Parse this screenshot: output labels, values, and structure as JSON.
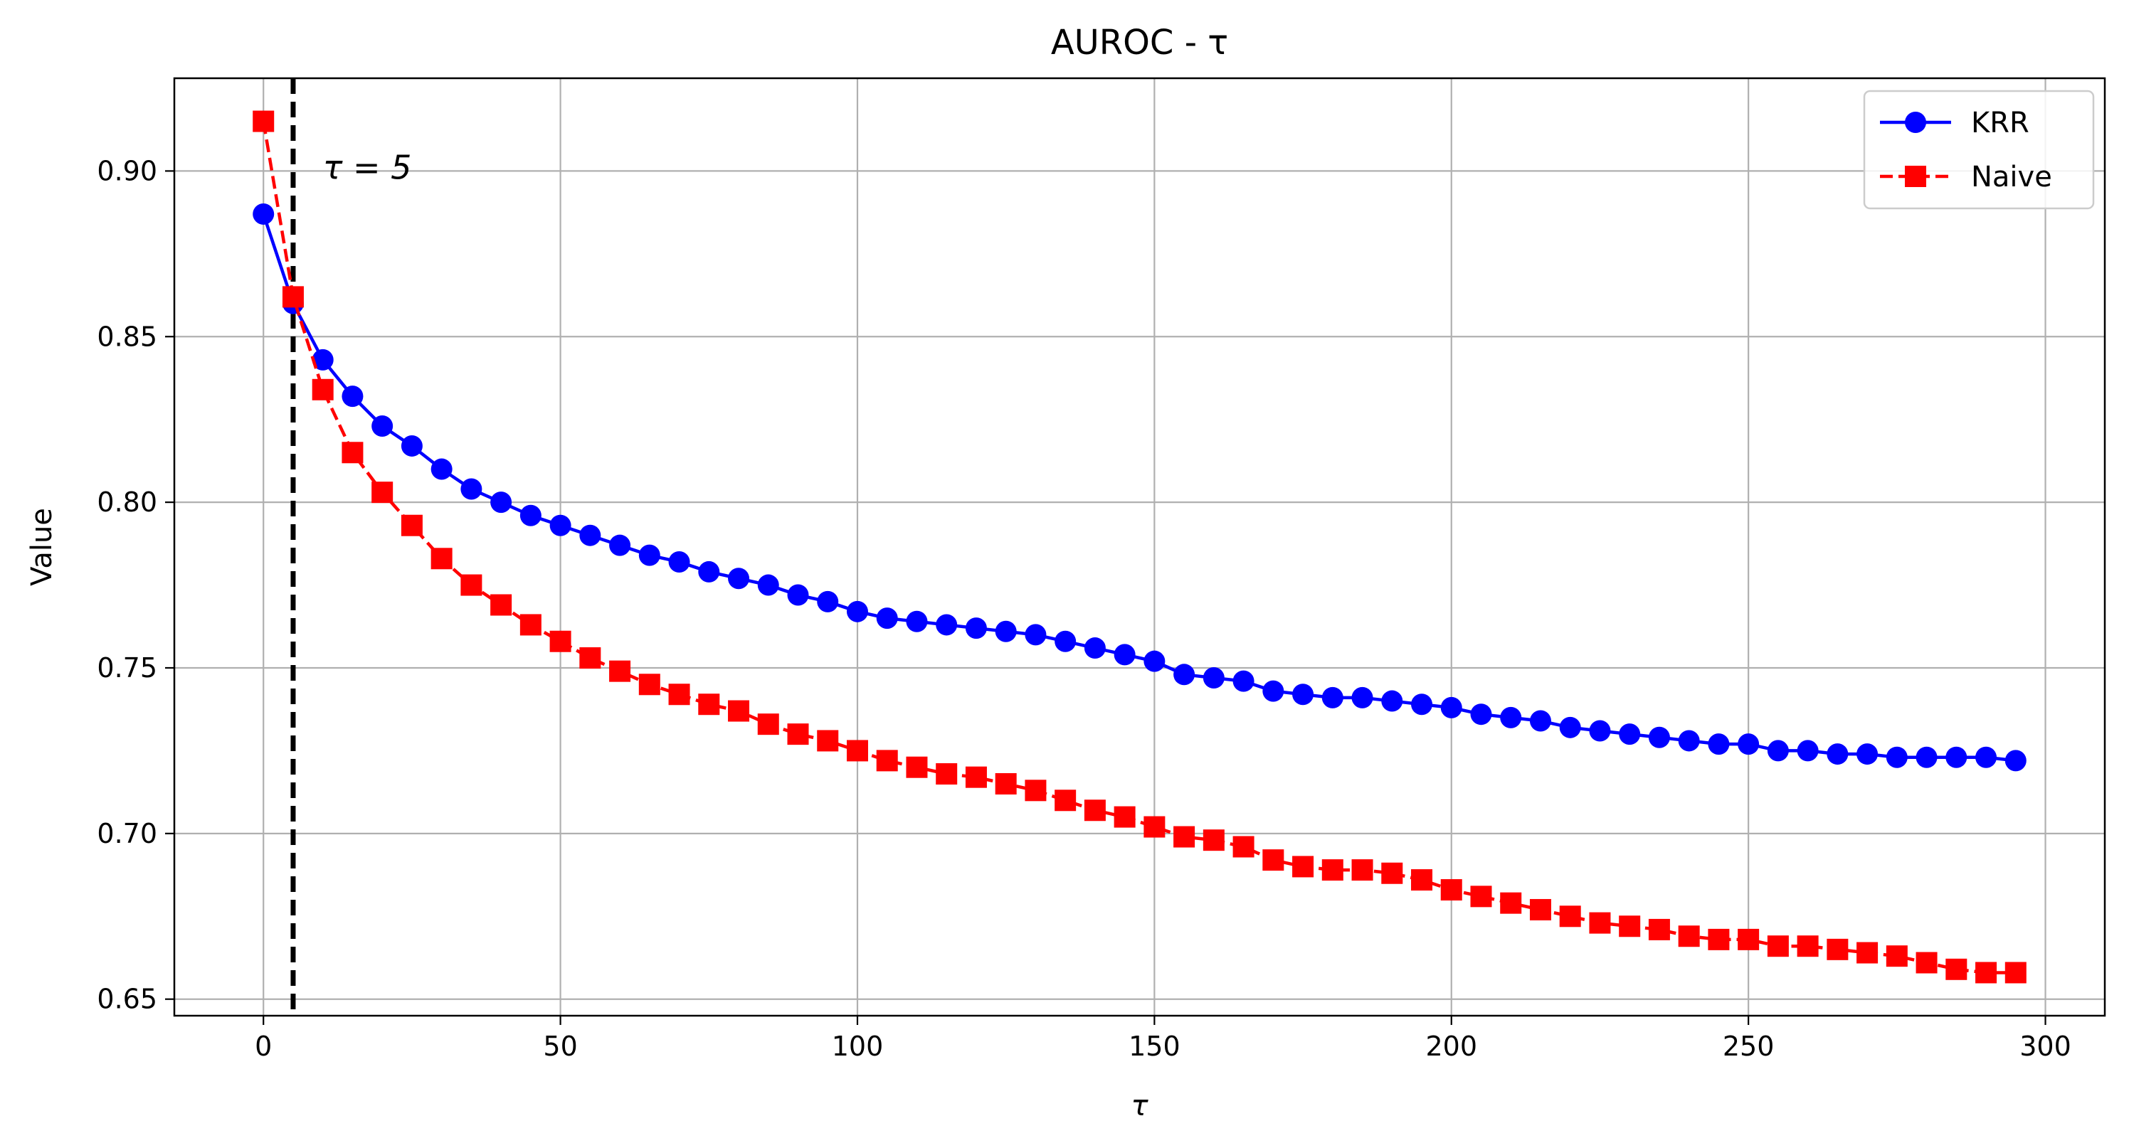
{
  "chart_data": {
    "type": "line",
    "title": "AUROC - τ",
    "xlabel": "τ",
    "ylabel": "Value",
    "xlim": [
      -15,
      310
    ],
    "ylim": [
      0.645,
      0.928
    ],
    "xticks": [
      0,
      50,
      100,
      150,
      200,
      250,
      300
    ],
    "yticks": [
      0.65,
      0.7,
      0.75,
      0.8,
      0.85,
      0.9
    ],
    "xtick_labels": [
      "0",
      "50",
      "100",
      "150",
      "200",
      "250",
      "300"
    ],
    "ytick_labels": [
      "0.65",
      "0.70",
      "0.75",
      "0.80",
      "0.85",
      "0.90"
    ],
    "grid": true,
    "legend_position": "top-right",
    "x": [
      0,
      5,
      10,
      15,
      20,
      25,
      30,
      35,
      40,
      45,
      50,
      55,
      60,
      65,
      70,
      75,
      80,
      85,
      90,
      95,
      100,
      105,
      110,
      115,
      120,
      125,
      130,
      135,
      140,
      145,
      150,
      155,
      160,
      165,
      170,
      175,
      180,
      185,
      190,
      195,
      200,
      205,
      210,
      215,
      220,
      225,
      230,
      235,
      240,
      245,
      250,
      255,
      260,
      265,
      270,
      275,
      280,
      285,
      290,
      295
    ],
    "series": [
      {
        "name": "KRR",
        "color": "#0000ff",
        "marker": "circle",
        "linestyle": "solid",
        "values": [
          0.887,
          0.86,
          0.843,
          0.832,
          0.823,
          0.817,
          0.81,
          0.804,
          0.8,
          0.796,
          0.793,
          0.79,
          0.787,
          0.784,
          0.782,
          0.779,
          0.777,
          0.775,
          0.772,
          0.77,
          0.767,
          0.765,
          0.764,
          0.763,
          0.762,
          0.761,
          0.76,
          0.758,
          0.756,
          0.754,
          0.752,
          0.748,
          0.747,
          0.746,
          0.743,
          0.742,
          0.741,
          0.741,
          0.74,
          0.739,
          0.738,
          0.736,
          0.735,
          0.734,
          0.732,
          0.731,
          0.73,
          0.729,
          0.728,
          0.727,
          0.727,
          0.725,
          0.725,
          0.724,
          0.724,
          0.723,
          0.723,
          0.723,
          0.723,
          0.722
        ]
      },
      {
        "name": "Naive",
        "color": "#ff0000",
        "marker": "square",
        "linestyle": "dashed",
        "values": [
          0.915,
          0.862,
          0.834,
          0.815,
          0.803,
          0.793,
          0.783,
          0.775,
          0.769,
          0.763,
          0.758,
          0.753,
          0.749,
          0.745,
          0.742,
          0.739,
          0.737,
          0.733,
          0.73,
          0.728,
          0.725,
          0.722,
          0.72,
          0.718,
          0.717,
          0.715,
          0.713,
          0.71,
          0.707,
          0.705,
          0.702,
          0.699,
          0.698,
          0.696,
          0.692,
          0.69,
          0.689,
          0.689,
          0.688,
          0.686,
          0.683,
          0.681,
          0.679,
          0.677,
          0.675,
          0.673,
          0.672,
          0.671,
          0.669,
          0.668,
          0.668,
          0.666,
          0.666,
          0.665,
          0.664,
          0.663,
          0.661,
          0.659,
          0.658,
          0.658
        ]
      }
    ],
    "vline": {
      "x": 5,
      "color": "#000000",
      "linestyle": "dashed"
    },
    "annotation": {
      "text": "τ = 5",
      "x": 10,
      "y": 0.901
    }
  }
}
